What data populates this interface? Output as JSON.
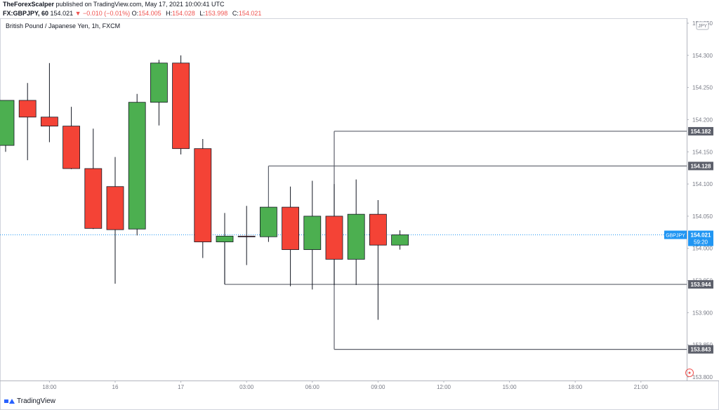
{
  "header": {
    "author": "TheForexScalper",
    "published": "published on TradingView.com, May 17, 2021 10:00:41 UTC",
    "symbol": "FX:GBPJPY, 60",
    "last": "154.021",
    "change": "▼ −0.010 (−0.01%)",
    "open_label": "O:",
    "open": "154.005",
    "high_label": "H:",
    "high": "154.028",
    "low_label": "L:",
    "low": "153.998",
    "close_label": "C:",
    "close": "154.021"
  },
  "colors": {
    "up": "#4caf50",
    "down": "#f44336",
    "level_line": "#5d606b",
    "price_tag": "#2196f3"
  },
  "chart_data": {
    "type": "candlestick",
    "title": "British Pound / Japanese Yen, 1h, FXCM",
    "currency_badge": "JPY",
    "ylim": [
      153.8,
      154.35
    ],
    "y_ticks": [
      "154.350",
      "154.300",
      "154.250",
      "154.200",
      "154.150",
      "154.100",
      "154.050",
      "154.000",
      "153.950",
      "153.900",
      "153.850",
      "153.800"
    ],
    "x_ticks": [
      {
        "i": 2,
        "label": "18:00"
      },
      {
        "i": 5,
        "label": "16"
      },
      {
        "i": 8,
        "label": "17"
      },
      {
        "i": 11,
        "label": "03:00"
      },
      {
        "i": 14,
        "label": "06:00"
      },
      {
        "i": 17,
        "label": "09:00"
      },
      {
        "i": 20,
        "label": "12:00"
      },
      {
        "i": 23,
        "label": "15:00"
      },
      {
        "i": 26,
        "label": "18:00"
      },
      {
        "i": 29,
        "label": "21:00"
      }
    ],
    "candles": [
      {
        "o": 154.16,
        "h": 154.23,
        "l": 154.15,
        "c": 154.23
      },
      {
        "o": 154.23,
        "h": 154.257,
        "l": 154.137,
        "c": 154.204
      },
      {
        "o": 154.204,
        "h": 154.288,
        "l": 154.165,
        "c": 154.19
      },
      {
        "o": 154.19,
        "h": 154.22,
        "l": 154.123,
        "c": 154.124
      },
      {
        "o": 154.124,
        "h": 154.186,
        "l": 154.03,
        "c": 154.031
      },
      {
        "o": 154.096,
        "h": 154.142,
        "l": 153.945,
        "c": 154.029
      },
      {
        "o": 154.03,
        "h": 154.24,
        "l": 154.02,
        "c": 154.227
      },
      {
        "o": 154.227,
        "h": 154.293,
        "l": 154.191,
        "c": 154.288
      },
      {
        "o": 154.288,
        "h": 154.3,
        "l": 154.146,
        "c": 154.155
      },
      {
        "o": 154.155,
        "h": 154.17,
        "l": 153.985,
        "c": 154.01
      },
      {
        "o": 154.01,
        "h": 154.055,
        "l": 153.944,
        "c": 154.019
      },
      {
        "o": 154.019,
        "h": 154.066,
        "l": 153.974,
        "c": 154.018
      },
      {
        "o": 154.018,
        "h": 154.064,
        "l": 154.01,
        "c": 154.064
      },
      {
        "o": 154.064,
        "h": 154.096,
        "l": 153.941,
        "c": 153.998
      },
      {
        "o": 153.998,
        "h": 154.105,
        "l": 153.936,
        "c": 154.05
      },
      {
        "o": 154.05,
        "h": 154.1,
        "l": 153.943,
        "c": 153.983
      },
      {
        "o": 153.983,
        "h": 154.107,
        "l": 153.943,
        "c": 154.053
      },
      {
        "o": 154.053,
        "h": 154.075,
        "l": 153.889,
        "c": 154.005
      },
      {
        "o": 154.005,
        "h": 154.028,
        "l": 153.998,
        "c": 154.021
      }
    ],
    "levels": [
      {
        "price": 154.182,
        "label": "154.182",
        "start_index": 15
      },
      {
        "price": 154.128,
        "label": "154.128",
        "start_index": 12
      },
      {
        "price": 153.944,
        "label": "153.944",
        "start_index": 10
      },
      {
        "price": 153.843,
        "label": "153.843",
        "start_index": 15
      }
    ],
    "vertical_connectors": [
      {
        "index": 15,
        "from": 154.182,
        "to": 153.843
      },
      {
        "index": 12,
        "from": 154.128,
        "to": 154.018
      },
      {
        "index": 10,
        "from": 154.01,
        "to": 153.944
      }
    ],
    "current_price": {
      "value": 154.021,
      "symbol": "GBPJPY",
      "price": "154.021",
      "countdown": "59:20"
    }
  },
  "footer": {
    "brand": "TradingView"
  }
}
